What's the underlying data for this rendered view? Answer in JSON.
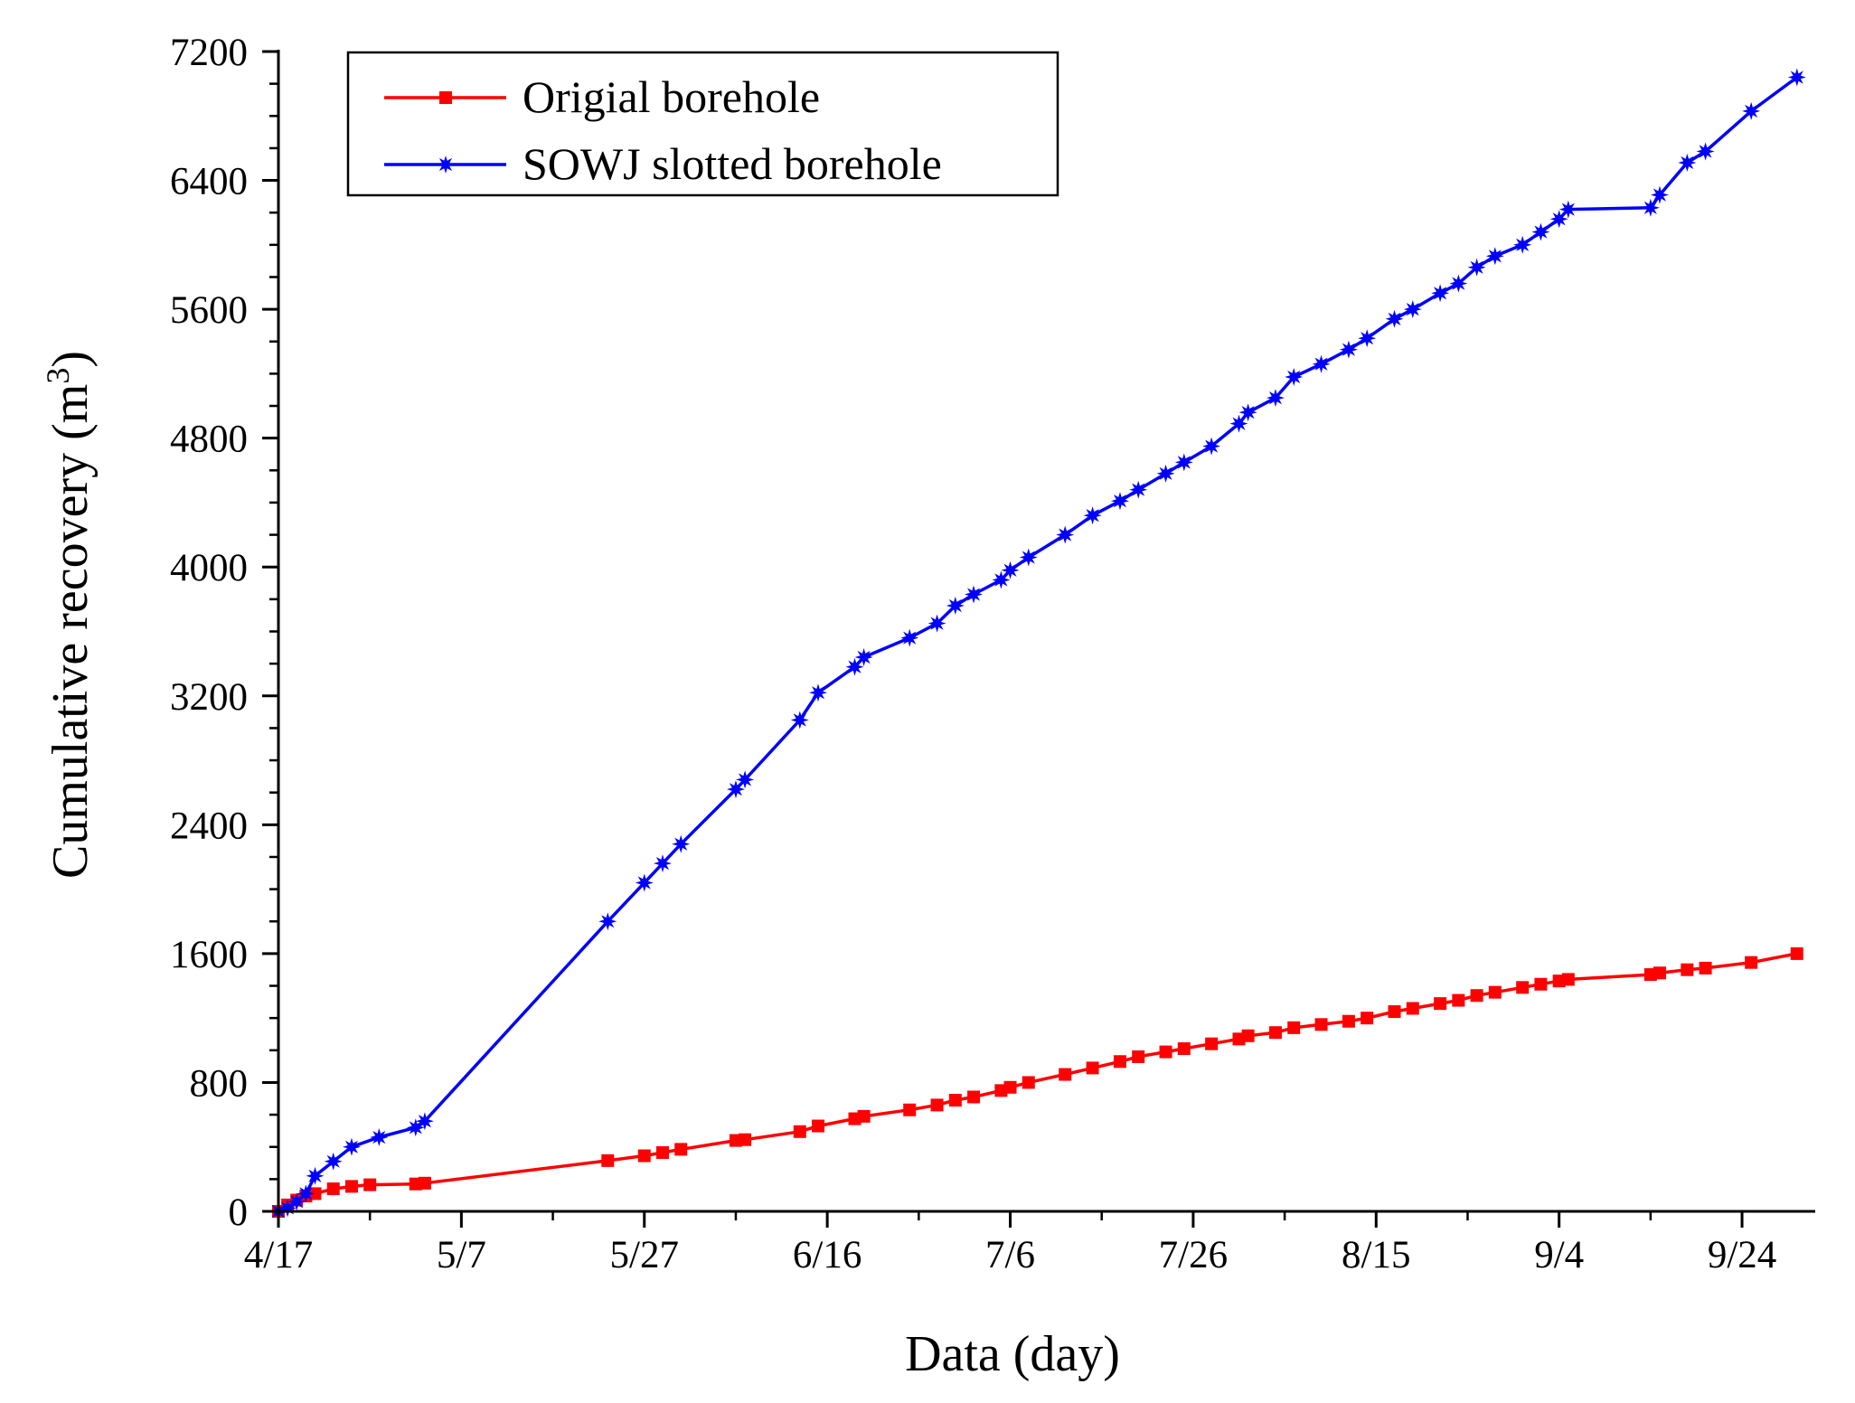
{
  "chart_data": {
    "type": "line",
    "title": "",
    "xlabel": "Data (day)",
    "ylabel": "Cumulative recovery (m",
    "ylabel_superscript": "3",
    "ylabel_suffix": ")",
    "xlim": [
      0,
      168
    ],
    "ylim": [
      0,
      7200
    ],
    "x_ticks": [
      0,
      20,
      40,
      60,
      80,
      100,
      120,
      140,
      160
    ],
    "x_tick_labels": [
      "4/17",
      "5/7",
      "5/27",
      "6/16",
      "7/6",
      "7/26",
      "8/15",
      "9/4",
      "9/24"
    ],
    "y_ticks": [
      0,
      800,
      1600,
      2400,
      3200,
      4000,
      4800,
      5600,
      6400,
      7200
    ],
    "y_tick_labels": [
      "0",
      "800",
      "1600",
      "2400",
      "3200",
      "4000",
      "4800",
      "5600",
      "6400",
      "7200"
    ],
    "x_unit": "days since 4/17",
    "legend_position": "top-left",
    "grid": false,
    "series": [
      {
        "name": "Origial borehole",
        "color": "#ff0000",
        "marker": "square",
        "x": [
          0,
          1,
          2,
          3,
          4,
          6,
          8,
          10,
          15,
          16,
          36,
          40,
          42,
          44,
          50,
          51,
          57,
          59,
          63,
          64,
          69,
          72,
          74,
          76,
          79,
          80,
          82,
          86,
          89,
          92,
          94,
          97,
          99,
          102,
          105,
          106,
          109,
          111,
          114,
          117,
          119,
          122,
          124,
          127,
          129,
          131,
          133,
          136,
          138,
          140,
          141,
          150,
          151,
          154,
          156,
          161,
          166
        ],
        "y": [
          0,
          40,
          70,
          95,
          110,
          140,
          155,
          165,
          170,
          175,
          315,
          345,
          365,
          385,
          440,
          445,
          495,
          530,
          575,
          590,
          630,
          660,
          690,
          710,
          750,
          770,
          800,
          850,
          890,
          930,
          960,
          990,
          1010,
          1040,
          1070,
          1090,
          1110,
          1140,
          1160,
          1180,
          1200,
          1240,
          1260,
          1290,
          1310,
          1340,
          1360,
          1390,
          1410,
          1430,
          1440,
          1470,
          1480,
          1500,
          1510,
          1545,
          1600
        ]
      },
      {
        "name": "SOWJ slotted borehole",
        "color": "#0000ff",
        "marker": "star",
        "x": [
          0,
          1,
          2,
          3,
          4,
          6,
          8,
          11,
          15,
          16,
          36,
          40,
          42,
          44,
          50,
          51,
          57,
          59,
          63,
          64,
          69,
          72,
          74,
          76,
          79,
          80,
          82,
          86,
          89,
          92,
          94,
          97,
          99,
          102,
          105,
          106,
          109,
          111,
          114,
          117,
          119,
          122,
          124,
          127,
          129,
          131,
          133,
          136,
          138,
          140,
          141,
          150,
          151,
          154,
          156,
          161,
          166
        ],
        "y": [
          0,
          20,
          60,
          110,
          220,
          310,
          400,
          460,
          520,
          560,
          1800,
          2040,
          2160,
          2280,
          2620,
          2680,
          3050,
          3220,
          3380,
          3440,
          3560,
          3650,
          3760,
          3830,
          3920,
          3980,
          4060,
          4200,
          4320,
          4410,
          4480,
          4580,
          4650,
          4750,
          4890,
          4960,
          5050,
          5180,
          5260,
          5350,
          5420,
          5540,
          5600,
          5700,
          5760,
          5860,
          5930,
          6000,
          6080,
          6160,
          6220,
          6230,
          6310,
          6510,
          6580,
          6830,
          7040
        ]
      }
    ]
  }
}
